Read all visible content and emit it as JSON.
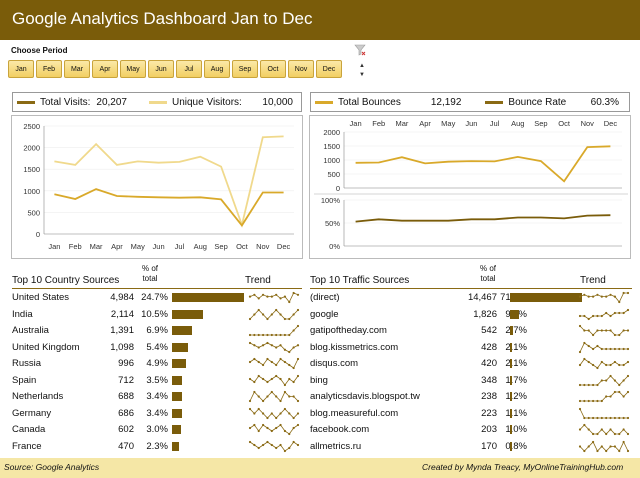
{
  "header": {
    "title": "Google Analytics Dashboard Jan to Dec",
    "choose_period": "Choose Period"
  },
  "slicer": {
    "months": [
      "Jan",
      "Feb",
      "Mar",
      "Apr",
      "May",
      "Jun",
      "Jul",
      "Aug",
      "Sep",
      "Oct",
      "Nov",
      "Dec"
    ]
  },
  "visits_legend": {
    "total_label": "Total Visits:",
    "total_value": "20,207",
    "unique_label": "Unique Visitors:",
    "unique_value": "10,000"
  },
  "bounce_legend": {
    "total_label": "Total Bounces",
    "total_value": "12,192",
    "rate_label": "Bounce Rate",
    "rate_value": "60.3%"
  },
  "colors": {
    "brand_dark": "#7a5c0a",
    "accent_gold": "#d9a92a",
    "light_gold": "#f0d98c",
    "footer_bg": "#f5e7a6"
  },
  "chart_data": [
    {
      "type": "line",
      "categories": [
        "Jan",
        "Feb",
        "Mar",
        "Apr",
        "May",
        "Jun",
        "Jul",
        "Aug",
        "Sep",
        "Oct",
        "Nov",
        "Dec"
      ],
      "series": [
        {
          "name": "Total Visits",
          "values": [
            1680,
            1600,
            2080,
            1600,
            1680,
            1650,
            1670,
            1790,
            1560,
            210,
            2240,
            2260
          ]
        },
        {
          "name": "Unique Visitors",
          "values": [
            920,
            810,
            1040,
            880,
            860,
            850,
            840,
            850,
            800,
            200,
            960,
            960
          ]
        }
      ],
      "ylim": [
        0,
        2500
      ],
      "yticks": [
        "0",
        "500",
        "1000",
        "1500",
        "2000",
        "2500"
      ]
    },
    {
      "type": "line",
      "categories": [
        "Jan",
        "Feb",
        "Mar",
        "Apr",
        "May",
        "Jun",
        "Jul",
        "Aug",
        "Sep",
        "Oct",
        "Nov",
        "Dec"
      ],
      "series": [
        {
          "name": "Total Bounces",
          "values": [
            900,
            910,
            1100,
            880,
            940,
            960,
            950,
            1110,
            960,
            240,
            1460,
            1490
          ]
        }
      ],
      "ylim": [
        0,
        2000
      ],
      "yticks": [
        "0",
        "500",
        "1000",
        "1500",
        "2000"
      ]
    },
    {
      "type": "line",
      "categories": [
        "Jan",
        "Feb",
        "Mar",
        "Apr",
        "May",
        "Jun",
        "Jul",
        "Aug",
        "Sep",
        "Oct",
        "Nov",
        "Dec"
      ],
      "series": [
        {
          "name": "Bounce Rate",
          "values": [
            53,
            58,
            55,
            55,
            55,
            58,
            58,
            62,
            62,
            60,
            66,
            67
          ]
        }
      ],
      "ylim": [
        0,
        100
      ],
      "yticks": [
        "0%",
        "50%",
        "100%"
      ]
    }
  ],
  "countries": {
    "title": "Top 10 Country Sources",
    "pct_header_1": "% of",
    "pct_header_2": "total",
    "trend_header": "Trend",
    "rows": [
      {
        "name": "United States",
        "value": "4,984",
        "pct": "24.7%",
        "share": 24.7,
        "trend": [
          5,
          6,
          4,
          6,
          5,
          5,
          6,
          4,
          5,
          2,
          7,
          6
        ]
      },
      {
        "name": "India",
        "value": "2,114",
        "pct": "10.5%",
        "share": 10.5,
        "trend": [
          4,
          5,
          6,
          5,
          4,
          5,
          6,
          5,
          4,
          4,
          5,
          6
        ]
      },
      {
        "name": "Australia",
        "value": "1,391",
        "pct": "6.9%",
        "share": 6.9,
        "trend": [
          5,
          5,
          5,
          5,
          5,
          5,
          5,
          5,
          5,
          5,
          6,
          7
        ]
      },
      {
        "name": "United Kingdom",
        "value": "1,098",
        "pct": "5.4%",
        "share": 5.4,
        "trend": [
          6,
          5,
          4,
          5,
          6,
          5,
          4,
          5,
          3,
          2,
          4,
          5
        ]
      },
      {
        "name": "Russia",
        "value": "996",
        "pct": "4.9%",
        "share": 4.9,
        "trend": [
          5,
          6,
          5,
          4,
          6,
          5,
          4,
          6,
          5,
          4,
          3,
          6
        ]
      },
      {
        "name": "Spain",
        "value": "712",
        "pct": "3.5%",
        "share": 3.5,
        "trend": [
          5,
          4,
          6,
          5,
          4,
          5,
          6,
          5,
          3,
          5,
          4,
          6
        ]
      },
      {
        "name": "Netherlands",
        "value": "688",
        "pct": "3.4%",
        "share": 3.4,
        "trend": [
          4,
          6,
          5,
          4,
          5,
          6,
          5,
          4,
          6,
          5,
          5,
          4
        ]
      },
      {
        "name": "Germany",
        "value": "686",
        "pct": "3.4%",
        "share": 3.4,
        "trend": [
          6,
          5,
          6,
          5,
          4,
          5,
          4,
          5,
          6,
          5,
          4,
          5
        ]
      },
      {
        "name": "Canada",
        "value": "602",
        "pct": "3.0%",
        "share": 3.0,
        "trend": [
          5,
          6,
          4,
          6,
          5,
          4,
          5,
          6,
          4,
          3,
          5,
          6
        ]
      },
      {
        "name": "France",
        "value": "470",
        "pct": "2.3%",
        "share": 2.3,
        "trend": [
          6,
          5,
          4,
          5,
          6,
          5,
          4,
          5,
          3,
          4,
          6,
          5
        ]
      }
    ]
  },
  "traffic": {
    "title": "Top 10 Traffic Sources",
    "pct_header_1": "% of",
    "pct_header_2": "total",
    "trend_header": "Trend",
    "rows": [
      {
        "name": "(direct)",
        "value": "14,467",
        "pct": "71.6%",
        "share": 71.6,
        "trend": [
          5,
          6,
          5,
          5,
          6,
          5,
          5,
          6,
          5,
          2,
          7,
          7
        ]
      },
      {
        "name": "google",
        "value": "1,826",
        "pct": "9.0%",
        "share": 9.0,
        "trend": [
          5,
          5,
          4,
          5,
          5,
          5,
          6,
          5,
          6,
          6,
          6,
          7
        ]
      },
      {
        "name": "gatipoftheday.com",
        "value": "542",
        "pct": "2.7%",
        "share": 2.7,
        "trend": [
          6,
          5,
          5,
          4,
          5,
          5,
          5,
          5,
          4,
          4,
          5,
          5
        ]
      },
      {
        "name": "blog.kissmetrics.com",
        "value": "428",
        "pct": "2.1%",
        "share": 2.1,
        "trend": [
          3,
          6,
          5,
          4,
          5,
          4,
          4,
          4,
          4,
          4,
          4,
          4
        ]
      },
      {
        "name": "disqus.com",
        "value": "420",
        "pct": "2.1%",
        "share": 2.1,
        "trend": [
          4,
          6,
          5,
          4,
          3,
          5,
          4,
          4,
          5,
          4,
          4,
          5
        ]
      },
      {
        "name": "bing",
        "value": "348",
        "pct": "1.7%",
        "share": 1.7,
        "trend": [
          4,
          4,
          4,
          4,
          4,
          5,
          5,
          6,
          5,
          4,
          5,
          6
        ]
      },
      {
        "name": "analyticsdavis.blogspot.tw",
        "value": "238",
        "pct": "1.2%",
        "share": 1.2,
        "trend": [
          4,
          4,
          4,
          4,
          4,
          4,
          5,
          5,
          6,
          6,
          5,
          6
        ]
      },
      {
        "name": "blog.measureful.com",
        "value": "223",
        "pct": "1.1%",
        "share": 1.1,
        "trend": [
          6,
          4,
          4,
          4,
          4,
          4,
          4,
          4,
          4,
          4,
          4,
          4
        ]
      },
      {
        "name": "facebook.com",
        "value": "203",
        "pct": "1.0%",
        "share": 1.0,
        "trend": [
          5,
          6,
          5,
          4,
          4,
          5,
          4,
          5,
          4,
          4,
          5,
          4
        ]
      },
      {
        "name": "allmetrics.ru",
        "value": "170",
        "pct": "0.8%",
        "share": 0.8,
        "trend": [
          5,
          4,
          5,
          6,
          4,
          5,
          4,
          5,
          5,
          4,
          6,
          4
        ]
      }
    ]
  },
  "footer": {
    "source": "Source: Google Analytics",
    "credit": "Created by Mynda Treacy, MyOnlineTrainingHub.com"
  }
}
